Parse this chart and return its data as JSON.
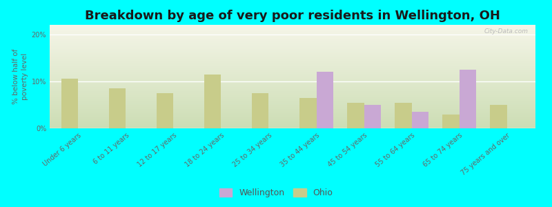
{
  "title": "Breakdown by age of very poor residents in Wellington, OH",
  "ylabel": "% below half of\npoverty level",
  "background_outer": "#00FFFF",
  "background_inner_top": "#f0f0e0",
  "background_inner_bottom": "#ccdcb0",
  "categories": [
    "Under 6 years",
    "6 to 11 years",
    "12 to 17 years",
    "18 to 24 years",
    "25 to 34 years",
    "35 to 44 years",
    "45 to 54 years",
    "55 to 64 years",
    "65 to 74 years",
    "75 years and over"
  ],
  "wellington_values": [
    0,
    0,
    0,
    0,
    0,
    12.0,
    5.0,
    3.5,
    12.5,
    0
  ],
  "ohio_values": [
    10.5,
    8.5,
    7.5,
    11.5,
    7.5,
    6.5,
    5.5,
    5.5,
    3.0,
    5.0
  ],
  "wellington_color": "#c9a8d4",
  "ohio_color": "#c8cc8a",
  "bar_width": 0.35,
  "ylim": [
    0,
    22
  ],
  "yticks": [
    0,
    10,
    20
  ],
  "ytick_labels": [
    "0%",
    "10%",
    "20%"
  ],
  "title_fontsize": 13,
  "tick_fontsize": 7,
  "ylabel_fontsize": 7.5,
  "legend_wellington": "Wellington",
  "legend_ohio": "Ohio",
  "watermark": "City-Data.com",
  "figsize": [
    8.0,
    3.0
  ],
  "dpi": 100
}
